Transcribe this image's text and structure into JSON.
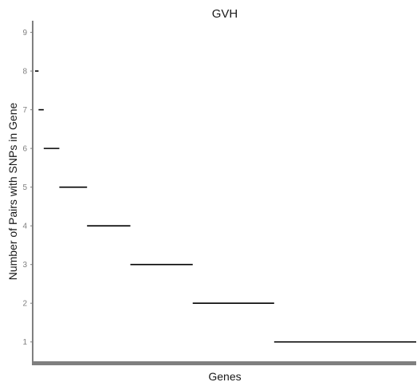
{
  "chart_data": {
    "type": "line",
    "title": "GVH",
    "xlabel": "Genes",
    "ylabel": "Number of Pairs with SNPs in Gene",
    "ylim": [
      0.5,
      9.3
    ],
    "y_ticks": [
      1,
      2,
      3,
      4,
      5,
      6,
      7,
      8,
      9
    ],
    "grid": false,
    "colors": {
      "segment": "#000000",
      "axis": "#7f7f7f",
      "text": "#1a1a1a",
      "tick_label": "#7f7f7f"
    },
    "segments": [
      {
        "y": 8,
        "x_start": 0,
        "x_end": 2
      },
      {
        "y": 7,
        "x_start": 2,
        "x_end": 5
      },
      {
        "y": 6,
        "x_start": 5,
        "x_end": 14
      },
      {
        "y": 5,
        "x_start": 14,
        "x_end": 30
      },
      {
        "y": 4,
        "x_start": 30,
        "x_end": 55
      },
      {
        "y": 3,
        "x_start": 55,
        "x_end": 91
      },
      {
        "y": 2,
        "x_start": 91,
        "x_end": 138
      },
      {
        "y": 1,
        "x_start": 138,
        "x_end": 220
      }
    ],
    "x_range": [
      0,
      220
    ]
  }
}
